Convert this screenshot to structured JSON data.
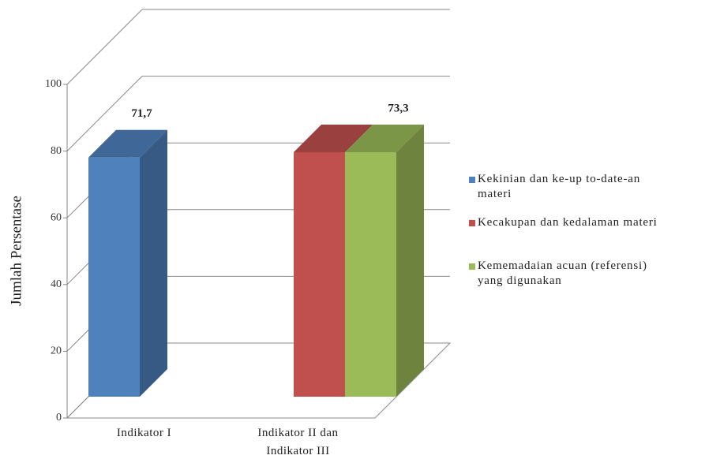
{
  "chart_data": {
    "type": "bar3d",
    "y_axis_label": "Jumlah Persentase",
    "categories": [
      "Indikator I",
      "Indikator II dan Indikator III"
    ],
    "series": [
      {
        "name": "Kekinian dan ke-up to-date-an materi",
        "color": "#4f81bd",
        "values": [
          71.7,
          null
        ],
        "value_labels": [
          "71,7",
          null
        ]
      },
      {
        "name": "Kecakupan dan kedalaman materi",
        "color": "#c0504d",
        "values": [
          null,
          73.3
        ]
      },
      {
        "name": "Kememadaian acuan (referensi) yang digunakan",
        "color": "#9bbb59",
        "values": [
          null,
          73.3
        ],
        "value_labels": [
          null,
          "73,3"
        ]
      }
    ],
    "ylim": [
      0,
      100
    ],
    "yticks": [
      0,
      20,
      40,
      60,
      80,
      100
    ],
    "grid": true,
    "legend": "right"
  }
}
